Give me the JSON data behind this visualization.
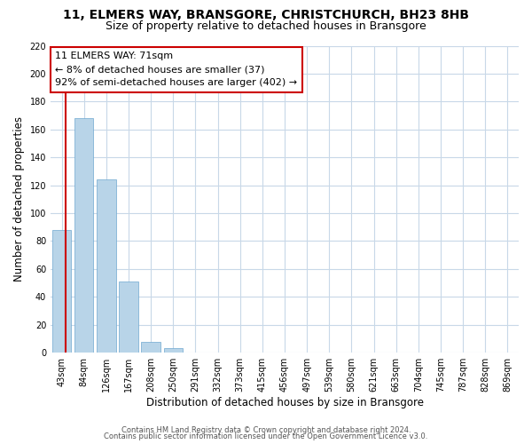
{
  "title": "11, ELMERS WAY, BRANSGORE, CHRISTCHURCH, BH23 8HB",
  "subtitle": "Size of property relative to detached houses in Bransgore",
  "xlabel": "Distribution of detached houses by size in Bransgore",
  "ylabel": "Number of detached properties",
  "bar_labels": [
    "43sqm",
    "84sqm",
    "126sqm",
    "167sqm",
    "208sqm",
    "250sqm",
    "291sqm",
    "332sqm",
    "373sqm",
    "415sqm",
    "456sqm",
    "497sqm",
    "539sqm",
    "580sqm",
    "621sqm",
    "663sqm",
    "704sqm",
    "745sqm",
    "787sqm",
    "828sqm",
    "869sqm"
  ],
  "bar_values": [
    88,
    168,
    124,
    51,
    8,
    3,
    0,
    0,
    0,
    0,
    0,
    0,
    0,
    0,
    0,
    0,
    0,
    0,
    0,
    0,
    0
  ],
  "bar_color": "#b8d4e8",
  "bar_edge_color": "#6ea8d0",
  "marker_color": "#cc0000",
  "annotation_line0": "11 ELMERS WAY: 71sqm",
  "annotation_line1": "← 8% of detached houses are smaller (37)",
  "annotation_line2": "92% of semi-detached houses are larger (402) →",
  "annotation_box_color": "#ffffff",
  "annotation_box_edge": "#cc0000",
  "ylim": [
    0,
    220
  ],
  "yticks": [
    0,
    20,
    40,
    60,
    80,
    100,
    120,
    140,
    160,
    180,
    200,
    220
  ],
  "footer1": "Contains HM Land Registry data © Crown copyright and database right 2024.",
  "footer2": "Contains public sector information licensed under the Open Government Licence v3.0.",
  "background_color": "#ffffff",
  "grid_color": "#c8d8e8",
  "title_fontsize": 10,
  "subtitle_fontsize": 9,
  "xlabel_fontsize": 8.5,
  "ylabel_fontsize": 8.5,
  "tick_fontsize": 7,
  "footer_fontsize": 6,
  "annotation_fontsize": 8
}
